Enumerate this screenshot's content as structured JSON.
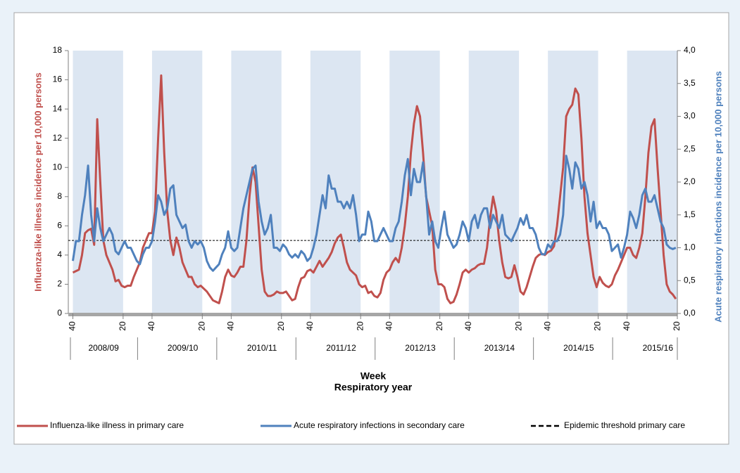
{
  "chart_data": {
    "type": "line",
    "y_title": "Influenza-like illness incidence per 10,000 persons",
    "y2_title": "Acute respiratory infections incidence per 10,000 persons",
    "x_title": "Week",
    "x_subtitle": "Respiratory year",
    "seasons": [
      "2008/09",
      "2009/10",
      "2010/11",
      "2011/12",
      "2012/13",
      "2013/14",
      "2014/15",
      "2015/16"
    ],
    "xlim": [
      -3,
      397
    ],
    "xticks": [
      {
        "value": 0,
        "label": "40"
      },
      {
        "value": 33,
        "label": "20"
      },
      {
        "value": 52,
        "label": "40"
      },
      {
        "value": 85,
        "label": "20"
      },
      {
        "value": 104,
        "label": "40"
      },
      {
        "value": 137,
        "label": "20"
      },
      {
        "value": 156,
        "label": "40"
      },
      {
        "value": 189,
        "label": "20"
      },
      {
        "value": 208,
        "label": "40"
      },
      {
        "value": 241,
        "label": "20"
      },
      {
        "value": 260,
        "label": "40"
      },
      {
        "value": 293,
        "label": "20"
      },
      {
        "value": 312,
        "label": "40"
      },
      {
        "value": 345,
        "label": "20"
      },
      {
        "value": 364,
        "label": "40"
      },
      {
        "value": 397,
        "label": "20"
      }
    ],
    "ylim": [
      0,
      18
    ],
    "yticks": [
      0,
      2,
      4,
      6,
      8,
      10,
      12,
      14,
      16,
      18
    ],
    "y2lim": [
      0,
      4
    ],
    "y2ticks": [
      {
        "value": 0,
        "label": "0,0"
      },
      {
        "value": 0.5,
        "label": "0,5"
      },
      {
        "value": 1,
        "label": "1,0"
      },
      {
        "value": 1.5,
        "label": "1,5"
      },
      {
        "value": 2,
        "label": "2,0"
      },
      {
        "value": 2.5,
        "label": "2,5"
      },
      {
        "value": 3,
        "label": "3,0"
      },
      {
        "value": 3.5,
        "label": "3,5"
      },
      {
        "value": 4,
        "label": "4,0"
      }
    ],
    "season_shading": "#dce6f2",
    "x": [
      0,
      2,
      4,
      6,
      8,
      10,
      12,
      14,
      16,
      18,
      20,
      22,
      24,
      26,
      28,
      30,
      32,
      34,
      36,
      38,
      40,
      42,
      44,
      46,
      48,
      50,
      52,
      54,
      56,
      58,
      60,
      62,
      64,
      66,
      68,
      70,
      72,
      74,
      76,
      78,
      80,
      82,
      84,
      86,
      88,
      90,
      92,
      94,
      96,
      98,
      100,
      102,
      104,
      106,
      108,
      110,
      112,
      114,
      116,
      118,
      120,
      122,
      124,
      126,
      128,
      130,
      132,
      134,
      136,
      138,
      140,
      142,
      144,
      146,
      148,
      150,
      152,
      154,
      156,
      158,
      160,
      162,
      164,
      166,
      168,
      170,
      172,
      174,
      176,
      178,
      180,
      182,
      184,
      186,
      188,
      190,
      192,
      194,
      196,
      198,
      200,
      202,
      204,
      206,
      208,
      210,
      212,
      214,
      216,
      218,
      220,
      222,
      224,
      226,
      228,
      230,
      232,
      234,
      236,
      238,
      240,
      242,
      244,
      246,
      248,
      250,
      252,
      254,
      256,
      258,
      260,
      262,
      264,
      266,
      268,
      270,
      272,
      274,
      276,
      278,
      280,
      282,
      284,
      286,
      288,
      290,
      292,
      294,
      296,
      298,
      300,
      302,
      304,
      306,
      308,
      310,
      312,
      314,
      316,
      318,
      320,
      322,
      324,
      326,
      328,
      330,
      332,
      334,
      336,
      338,
      340,
      342,
      344,
      346,
      348,
      350,
      352,
      354,
      356,
      358,
      360,
      362,
      364,
      366,
      368,
      370,
      372,
      374,
      376,
      378,
      380,
      382,
      384,
      386,
      388,
      390,
      392,
      394,
      396
    ],
    "series": [
      {
        "name": "Influenza-like illness in primary care",
        "color": "#c0504d",
        "axis": "y",
        "values": [
          2.8,
          2.9,
          3.0,
          4.0,
          5.5,
          5.7,
          5.8,
          4.7,
          13.3,
          9.0,
          5.0,
          4.0,
          3.5,
          3.0,
          2.2,
          2.3,
          1.9,
          1.8,
          1.9,
          1.9,
          2.5,
          3.0,
          3.5,
          4.5,
          5.0,
          5.5,
          5.5,
          7,
          12,
          16.3,
          11,
          7,
          5,
          4,
          5.2,
          4.5,
          3.5,
          3,
          2.5,
          2.5,
          2,
          1.8,
          1.9,
          1.7,
          1.5,
          1.2,
          0.9,
          0.8,
          0.7,
          1.5,
          2.5,
          3.0,
          2.6,
          2.5,
          2.8,
          3.2,
          3.2,
          5,
          8,
          10,
          9,
          6,
          3,
          1.5,
          1.2,
          1.2,
          1.3,
          1.5,
          1.4,
          1.4,
          1.5,
          1.2,
          0.9,
          1.0,
          1.8,
          2.4,
          2.5,
          2.9,
          3.0,
          2.8,
          3.2,
          3.6,
          3.2,
          3.5,
          3.8,
          4.2,
          4.8,
          5.2,
          5.4,
          4.5,
          3.5,
          3.0,
          2.8,
          2.6,
          2.0,
          1.8,
          1.9,
          1.4,
          1.5,
          1.2,
          1.1,
          1.4,
          2.3,
          2.8,
          3.0,
          3.5,
          3.8,
          3.5,
          4.5,
          6,
          8,
          11,
          13,
          14.2,
          13.5,
          11,
          8,
          7,
          6,
          3,
          2,
          2,
          1.8,
          1.0,
          0.7,
          0.8,
          1.3,
          2.0,
          2.8,
          3.0,
          2.8,
          3.0,
          3.1,
          3.3,
          3.4,
          3.4,
          4.5,
          6.5,
          8.0,
          7.0,
          5.0,
          3.5,
          2.5,
          2.4,
          2.5,
          3.3,
          2.5,
          1.5,
          1.3,
          1.8,
          2.5,
          3.2,
          3.8,
          4.0,
          4.1,
          4.0,
          4.2,
          4.3,
          4.6,
          6,
          8,
          10,
          13.5,
          14,
          14.3,
          15.4,
          15,
          12,
          8,
          5.5,
          4,
          2.5,
          1.8,
          2.5,
          2.1,
          1.9,
          1.8,
          2.0,
          2.6,
          3.0,
          3.5,
          4.0,
          4.5,
          4.5,
          4.0,
          3.8,
          4.5,
          5.5,
          8,
          11,
          12.8,
          13.3,
          10,
          7,
          4,
          2,
          1.5,
          1.3,
          1.0
        ]
      },
      {
        "name": "Acute respiratory infections in secondary care",
        "color": "#4f81bd",
        "axis": "y2",
        "values": [
          0.8,
          1.1,
          1.1,
          1.5,
          1.8,
          2.25,
          1.5,
          1.1,
          1.6,
          1.3,
          1.1,
          1.2,
          1.3,
          1.2,
          0.95,
          0.9,
          1.0,
          1.1,
          1.0,
          1.0,
          0.9,
          0.8,
          0.75,
          0.9,
          1.0,
          1.0,
          1.1,
          1.4,
          1.8,
          1.7,
          1.5,
          1.6,
          1.9,
          1.95,
          1.5,
          1.4,
          1.3,
          1.35,
          1.1,
          1.0,
          1.1,
          1.05,
          1.1,
          1.0,
          0.8,
          0.7,
          0.65,
          0.7,
          0.75,
          0.9,
          1.0,
          1.25,
          1.0,
          0.95,
          1.0,
          1.3,
          1.6,
          1.8,
          2.0,
          2.2,
          2.25,
          1.7,
          1.4,
          1.2,
          1.3,
          1.5,
          1.0,
          1.0,
          0.95,
          1.05,
          1.0,
          0.9,
          0.85,
          0.9,
          0.85,
          0.95,
          0.9,
          0.8,
          0.85,
          1.0,
          1.2,
          1.5,
          1.8,
          1.6,
          2.1,
          1.9,
          1.9,
          1.7,
          1.7,
          1.6,
          1.7,
          1.6,
          1.8,
          1.5,
          1.1,
          1.2,
          1.2,
          1.55,
          1.4,
          1.1,
          1.1,
          1.2,
          1.3,
          1.2,
          1.1,
          1.1,
          1.3,
          1.4,
          1.7,
          2.1,
          2.35,
          1.8,
          2.2,
          2.0,
          2.0,
          2.3,
          1.8,
          1.2,
          1.4,
          1.1,
          1.0,
          1.3,
          1.55,
          1.2,
          1.1,
          1.0,
          1.05,
          1.2,
          1.4,
          1.3,
          1.1,
          1.4,
          1.5,
          1.3,
          1.5,
          1.6,
          1.6,
          1.3,
          1.5,
          1.4,
          1.3,
          1.5,
          1.2,
          1.15,
          1.1,
          1.2,
          1.3,
          1.45,
          1.35,
          1.5,
          1.3,
          1.3,
          1.2,
          1.0,
          0.9,
          0.9,
          1.05,
          1.0,
          1.1,
          1.1,
          1.2,
          1.5,
          2.4,
          2.2,
          1.9,
          2.3,
          2.2,
          1.9,
          2.0,
          1.8,
          1.4,
          1.7,
          1.3,
          1.4,
          1.3,
          1.3,
          1.2,
          0.95,
          1.0,
          1.05,
          0.85,
          1.0,
          1.2,
          1.55,
          1.45,
          1.3,
          1.5,
          1.8,
          1.9,
          1.7,
          1.7,
          1.8,
          1.6,
          1.4,
          1.3,
          1.05,
          1.0,
          0.98,
          1.0
        ]
      }
    ],
    "threshold": {
      "name": "Epidemic threshold primary care",
      "value": 5,
      "color": "#000000",
      "dashed": true
    }
  }
}
